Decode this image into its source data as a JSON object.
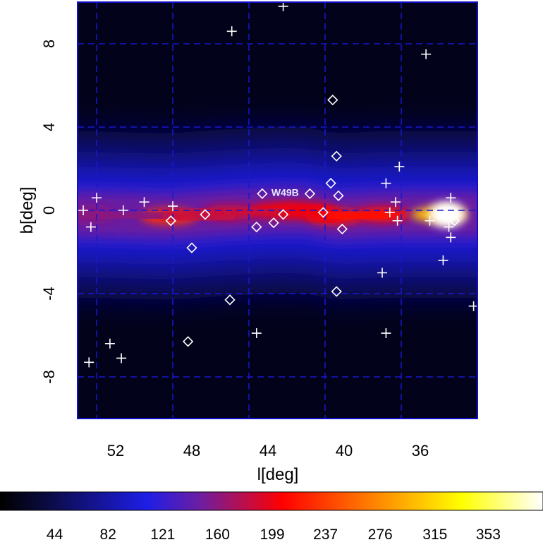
{
  "chart_data": {
    "type": "heatmap",
    "title": "",
    "xlabel": "l[deg]",
    "ylabel": "b[deg]",
    "xlim": [
      54,
      33
    ],
    "ylim": [
      -10,
      10
    ],
    "x_ticks": [
      52,
      48,
      44,
      40,
      36
    ],
    "y_ticks": [
      8,
      4,
      0,
      -4,
      -8
    ],
    "grid": true,
    "grid_lines_x": [
      53,
      49,
      45,
      41,
      37,
      33
    ],
    "grid_lines_y": [
      8,
      4,
      0,
      -4,
      -8
    ],
    "colormap": [
      "#000000",
      "#0a0a3c",
      "#1e1ee6",
      "#6e1ea0",
      "#ff0000",
      "#ff8c00",
      "#ffff00",
      "#ffffff"
    ],
    "colorbar": {
      "range": [
        5,
        392
      ],
      "ticks": [
        44,
        82,
        121,
        160,
        199,
        237,
        276,
        315,
        353
      ]
    },
    "emission_ridge": [
      {
        "l": 53.5,
        "b": -0.2,
        "value": 160
      },
      {
        "l": 49.2,
        "b": -0.3,
        "value": 230
      },
      {
        "l": 46.0,
        "b": -0.1,
        "value": 185
      },
      {
        "l": 43.5,
        "b": 0.0,
        "value": 205
      },
      {
        "l": 42.0,
        "b": 0.0,
        "value": 200
      },
      {
        "l": 40.5,
        "b": -0.3,
        "value": 215
      },
      {
        "l": 38.0,
        "b": -0.2,
        "value": 210
      },
      {
        "l": 35.0,
        "b": -0.2,
        "value": 300
      },
      {
        "l": 34.6,
        "b": -0.2,
        "value": 392
      }
    ],
    "series": [
      {
        "marker": "cross",
        "points": [
          [
            53.7,
            0.0
          ],
          [
            53.3,
            -0.8
          ],
          [
            53.0,
            0.6
          ],
          [
            51.6,
            0.0
          ],
          [
            50.5,
            0.4
          ],
          [
            49.0,
            0.2
          ],
          [
            52.3,
            -6.4
          ],
          [
            51.7,
            -7.1
          ],
          [
            53.4,
            -7.3
          ],
          [
            45.9,
            8.6
          ],
          [
            43.2,
            9.8
          ],
          [
            44.6,
            -5.9
          ],
          [
            37.8,
            1.3
          ],
          [
            37.1,
            2.1
          ],
          [
            37.3,
            0.4
          ],
          [
            37.6,
            -0.1
          ],
          [
            37.2,
            -0.5
          ],
          [
            38.0,
            -3.0
          ],
          [
            37.8,
            -5.9
          ],
          [
            35.7,
            7.5
          ],
          [
            35.5,
            -0.5
          ],
          [
            34.4,
            0.6
          ],
          [
            34.5,
            -0.8
          ],
          [
            34.4,
            -1.3
          ],
          [
            34.8,
            -2.4
          ],
          [
            33.2,
            -4.6
          ]
        ]
      },
      {
        "marker": "diamond",
        "points": [
          [
            49.1,
            -0.5
          ],
          [
            47.3,
            -0.2
          ],
          [
            48.0,
            -1.8
          ],
          [
            48.2,
            -6.3
          ],
          [
            46.0,
            -4.3
          ],
          [
            44.6,
            -0.8
          ],
          [
            44.3,
            0.8
          ],
          [
            43.7,
            -0.6
          ],
          [
            43.2,
            -0.2
          ],
          [
            41.8,
            0.8
          ],
          [
            41.1,
            -0.1
          ],
          [
            40.7,
            1.3
          ],
          [
            40.3,
            0.7
          ],
          [
            40.1,
            -0.9
          ],
          [
            40.6,
            5.3
          ],
          [
            40.4,
            2.6
          ],
          [
            40.4,
            -3.9
          ],
          [
            34.2,
            -0.5
          ]
        ]
      }
    ],
    "annotations": [
      {
        "text": "W49B",
        "l": 43.1,
        "b": 0.7
      }
    ]
  }
}
